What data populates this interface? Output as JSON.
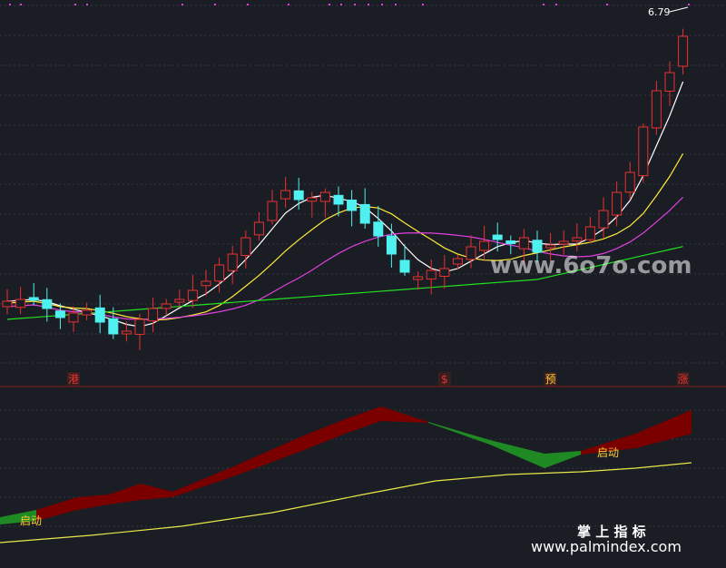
{
  "chart_data": [
    {
      "type": "candlestick",
      "panel": "price",
      "price_label": "6.79",
      "signal_markers": [
        {
          "text": "港",
          "candle": 5
        },
        {
          "text": "$",
          "candle": 33
        },
        {
          "text": "预",
          "candle": 41
        },
        {
          "text": "涨",
          "candle": 51
        }
      ],
      "legend": [],
      "grid": true
    },
    {
      "type": "area",
      "panel": "indicator",
      "labels": [
        "启动",
        "启动"
      ],
      "grid": true
    }
  ],
  "watermark": {
    "text": "www.6o7o.com"
  },
  "logo": {
    "title": "掌 上 指 标",
    "url": "www.palmindex.com"
  },
  "colors": {
    "background": "#1b1d24",
    "up": "#e8312f",
    "down": "#4ff0f0",
    "ma_fast": "#ffffff",
    "ma_mid": "#ffea3a",
    "ma_slow": "#e040e0",
    "ma_long": "#22e022",
    "area_red": "#7a0000",
    "area_green": "#1f8a24",
    "signal_line": "#e8e84a",
    "label_gold": "#ffcc33"
  }
}
